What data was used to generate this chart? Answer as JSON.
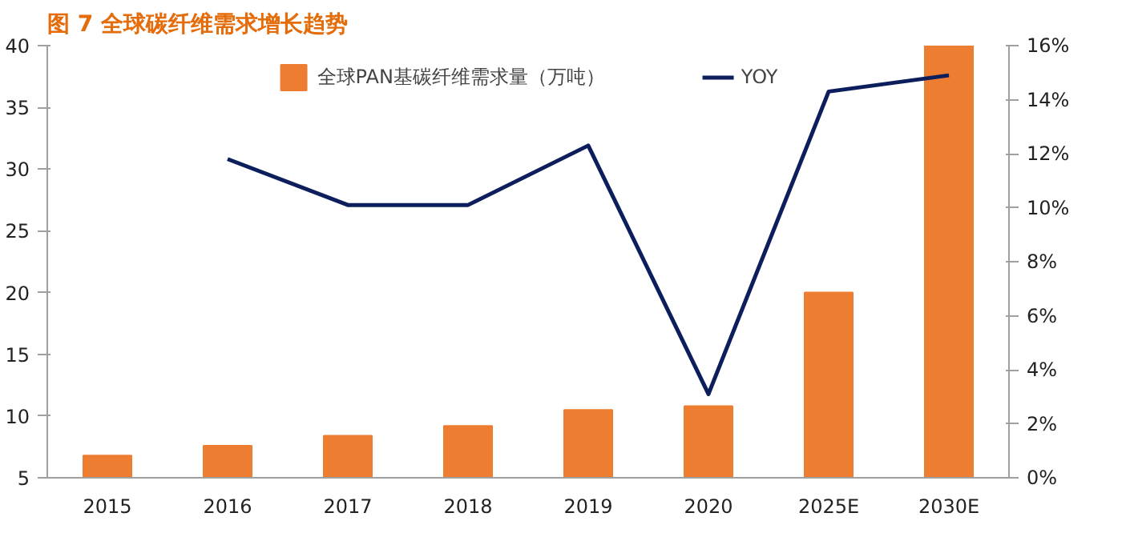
{
  "chart_data": {
    "type": "bar",
    "title": "图 7  全球碳纤维需求增长趋势",
    "categories": [
      "2015",
      "2016",
      "2017",
      "2018",
      "2019",
      "2020",
      "2025E",
      "2030E"
    ],
    "series": [
      {
        "name": "全球PAN基碳纤维需求量（万吨）",
        "color": "#ed7d31",
        "values": [
          6.8,
          7.6,
          8.4,
          9.2,
          10.5,
          10.8,
          20,
          40
        ]
      },
      {
        "name": "YOY",
        "type": "line",
        "axis": "y2",
        "color": "#0c1f5c",
        "values": [
          null,
          11.8,
          10.1,
          10.1,
          12.3,
          3.1,
          14.3,
          14.9
        ]
      }
    ],
    "ylim": [
      5,
      40
    ],
    "yticks": [
      5,
      10,
      15,
      20,
      25,
      30,
      35,
      40
    ],
    "y2lim": [
      0,
      16
    ],
    "y2ticks": [
      {
        "value": 0,
        "label": "0%"
      },
      {
        "value": 2,
        "label": "2%"
      },
      {
        "value": 4,
        "label": "4%"
      },
      {
        "value": 6,
        "label": "6%"
      },
      {
        "value": 8,
        "label": "8%"
      },
      {
        "value": 10,
        "label": "10%"
      },
      {
        "value": 12,
        "label": "12%"
      },
      {
        "value": 14,
        "label": "14%"
      },
      {
        "value": 16,
        "label": "16%"
      }
    ],
    "grid": false,
    "legend": "top"
  }
}
